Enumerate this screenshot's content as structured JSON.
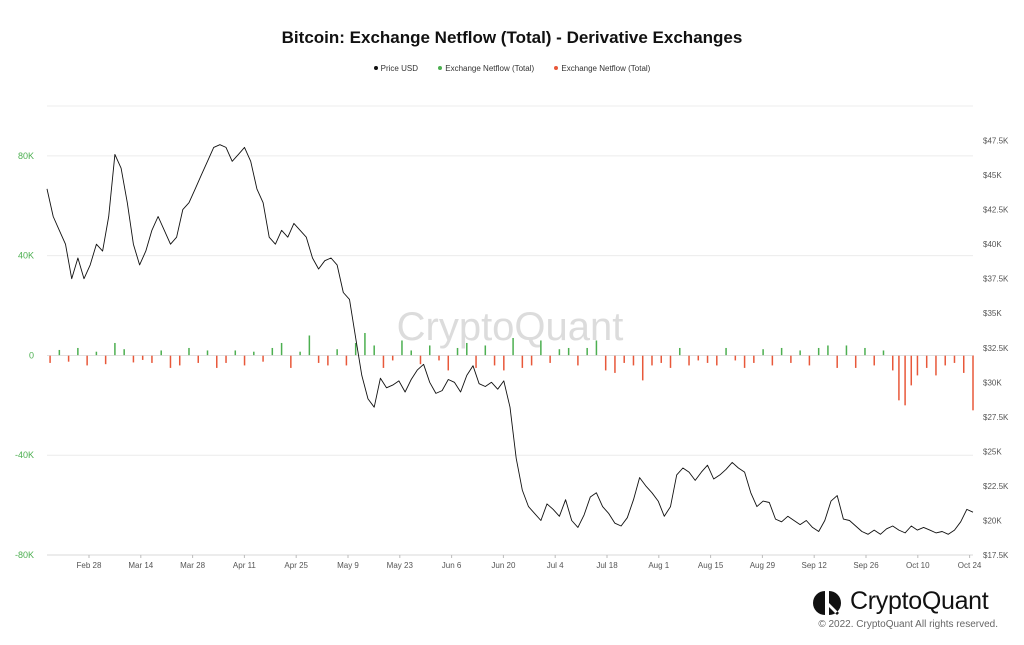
{
  "title": "Bitcoin: Exchange Netflow (Total) - Derivative Exchanges",
  "legend": [
    {
      "label": "Price USD",
      "color": "#111111"
    },
    {
      "label": "Exchange Netflow (Total)",
      "color": "#4caf50"
    },
    {
      "label": "Exchange Netflow (Total)",
      "color": "#e8583a"
    }
  ],
  "watermark": "CryptoQuant",
  "brand": {
    "name": "CryptoQuant",
    "copyright": "© 2022. CryptoQuant All rights reserved."
  },
  "colors": {
    "price": "#111111",
    "inflow": "#4caf50",
    "outflow": "#e8583a",
    "left_axis": "#4caf50",
    "grid": "#ececec"
  },
  "chart_data": {
    "type": "bar+line",
    "x_ticks": [
      "Feb 28",
      "Mar 14",
      "Mar 28",
      "Apr 11",
      "Apr 25",
      "May 9",
      "May 23",
      "Jun 6",
      "Jun 20",
      "Jul 4",
      "Jul 18",
      "Aug 1",
      "Aug 15",
      "Aug 29",
      "Sep 12",
      "Sep 26",
      "Oct 10",
      "Oct 24"
    ],
    "left_axis": {
      "ticks": [
        "80K",
        "40K",
        "0",
        "-40K",
        "-80K"
      ],
      "ylim": [
        -80000,
        100000
      ]
    },
    "right_axis": {
      "ticks": [
        "$47.5K",
        "$45K",
        "$42.5K",
        "$40K",
        "$37.5K",
        "$35K",
        "$32.5K",
        "$30K",
        "$27.5K",
        "$25K",
        "$22.5K",
        "$20K",
        "$17.5K"
      ],
      "ylim": [
        17500,
        50000
      ]
    },
    "price_usd": [
      [
        0,
        44000
      ],
      [
        2,
        42000
      ],
      [
        4,
        41000
      ],
      [
        6,
        40000
      ],
      [
        8,
        37500
      ],
      [
        10,
        39000
      ],
      [
        12,
        37500
      ],
      [
        14,
        38500
      ],
      [
        16,
        40000
      ],
      [
        18,
        39500
      ],
      [
        20,
        42000
      ],
      [
        22,
        46500
      ],
      [
        24,
        45500
      ],
      [
        26,
        43000
      ],
      [
        28,
        40000
      ],
      [
        30,
        38500
      ],
      [
        32,
        39500
      ],
      [
        34,
        41000
      ],
      [
        36,
        42000
      ],
      [
        38,
        41000
      ],
      [
        40,
        40000
      ],
      [
        42,
        40500
      ],
      [
        44,
        42500
      ],
      [
        46,
        43000
      ],
      [
        48,
        44000
      ],
      [
        50,
        45000
      ],
      [
        52,
        46000
      ],
      [
        54,
        47000
      ],
      [
        56,
        47200
      ],
      [
        58,
        47000
      ],
      [
        60,
        46000
      ],
      [
        62,
        46500
      ],
      [
        64,
        47000
      ],
      [
        66,
        46000
      ],
      [
        68,
        44000
      ],
      [
        70,
        43000
      ],
      [
        72,
        40500
      ],
      [
        74,
        40000
      ],
      [
        76,
        41000
      ],
      [
        78,
        40500
      ],
      [
        80,
        41500
      ],
      [
        82,
        41000
      ],
      [
        84,
        40500
      ],
      [
        86,
        39000
      ],
      [
        88,
        38200
      ],
      [
        90,
        38800
      ],
      [
        92,
        39000
      ],
      [
        94,
        38500
      ],
      [
        96,
        36500
      ],
      [
        98,
        36000
      ],
      [
        100,
        33200
      ],
      [
        102,
        30500
      ],
      [
        104,
        28800
      ],
      [
        106,
        28200
      ],
      [
        108,
        30300
      ],
      [
        110,
        29600
      ],
      [
        112,
        29800
      ],
      [
        114,
        30100
      ],
      [
        116,
        29300
      ],
      [
        118,
        30200
      ],
      [
        120,
        30900
      ],
      [
        122,
        31300
      ],
      [
        124,
        30000
      ],
      [
        126,
        29200
      ],
      [
        128,
        29400
      ],
      [
        130,
        30200
      ],
      [
        132,
        30000
      ],
      [
        134,
        29300
      ],
      [
        136,
        30500
      ],
      [
        138,
        31200
      ],
      [
        140,
        29900
      ],
      [
        142,
        29700
      ],
      [
        144,
        30000
      ],
      [
        146,
        29500
      ],
      [
        148,
        30100
      ],
      [
        150,
        28200
      ],
      [
        152,
        24500
      ],
      [
        154,
        22200
      ],
      [
        156,
        21000
      ],
      [
        158,
        20500
      ],
      [
        160,
        20000
      ],
      [
        162,
        21200
      ],
      [
        164,
        20800
      ],
      [
        166,
        20300
      ],
      [
        168,
        21500
      ],
      [
        170,
        20000
      ],
      [
        172,
        19500
      ],
      [
        174,
        20400
      ],
      [
        176,
        21700
      ],
      [
        178,
        22000
      ],
      [
        180,
        21000
      ],
      [
        182,
        20500
      ],
      [
        184,
        19800
      ],
      [
        186,
        19600
      ],
      [
        188,
        20200
      ],
      [
        190,
        21500
      ],
      [
        192,
        23100
      ],
      [
        194,
        22500
      ],
      [
        196,
        22000
      ],
      [
        198,
        21400
      ],
      [
        200,
        20300
      ],
      [
        202,
        21000
      ],
      [
        204,
        23300
      ],
      [
        206,
        23800
      ],
      [
        208,
        23500
      ],
      [
        210,
        22900
      ],
      [
        212,
        23500
      ],
      [
        214,
        24000
      ],
      [
        216,
        23000
      ],
      [
        218,
        23300
      ],
      [
        220,
        23700
      ],
      [
        222,
        24200
      ],
      [
        224,
        23800
      ],
      [
        226,
        23500
      ],
      [
        228,
        22000
      ],
      [
        230,
        21000
      ],
      [
        232,
        21400
      ],
      [
        234,
        21300
      ],
      [
        236,
        20100
      ],
      [
        238,
        19900
      ],
      [
        240,
        20300
      ],
      [
        242,
        20000
      ],
      [
        244,
        19700
      ],
      [
        246,
        20000
      ],
      [
        248,
        19500
      ],
      [
        250,
        19200
      ],
      [
        252,
        20000
      ],
      [
        254,
        21400
      ],
      [
        256,
        21800
      ],
      [
        258,
        20100
      ],
      [
        260,
        20000
      ],
      [
        262,
        19600
      ],
      [
        264,
        19200
      ],
      [
        266,
        19000
      ],
      [
        268,
        19300
      ],
      [
        270,
        19000
      ],
      [
        272,
        19400
      ],
      [
        274,
        19600
      ],
      [
        276,
        19300
      ],
      [
        278,
        19100
      ],
      [
        280,
        19600
      ],
      [
        282,
        19300
      ],
      [
        284,
        19500
      ],
      [
        286,
        19300
      ],
      [
        288,
        19100
      ],
      [
        290,
        19200
      ],
      [
        292,
        19000
      ],
      [
        294,
        19300
      ],
      [
        296,
        19900
      ],
      [
        298,
        20800
      ],
      [
        300,
        20600
      ]
    ],
    "netflow": [
      [
        1,
        -3000
      ],
      [
        4,
        2200
      ],
      [
        7,
        -2500
      ],
      [
        10,
        3000
      ],
      [
        13,
        -4000
      ],
      [
        16,
        1500
      ],
      [
        19,
        -3500
      ],
      [
        22,
        5000
      ],
      [
        25,
        2500
      ],
      [
        28,
        -2800
      ],
      [
        31,
        -1800
      ],
      [
        34,
        -3000
      ],
      [
        37,
        2000
      ],
      [
        40,
        -5000
      ],
      [
        43,
        -4000
      ],
      [
        46,
        3000
      ],
      [
        49,
        -3000
      ],
      [
        52,
        2000
      ],
      [
        55,
        -5000
      ],
      [
        58,
        -3000
      ],
      [
        61,
        2000
      ],
      [
        64,
        -4000
      ],
      [
        67,
        1500
      ],
      [
        70,
        -2500
      ],
      [
        73,
        3000
      ],
      [
        76,
        5000
      ],
      [
        79,
        -5000
      ],
      [
        82,
        1500
      ],
      [
        85,
        8000
      ],
      [
        88,
        -3000
      ],
      [
        91,
        -4000
      ],
      [
        94,
        2500
      ],
      [
        97,
        -4000
      ],
      [
        100,
        5000
      ],
      [
        103,
        9000
      ],
      [
        106,
        4000
      ],
      [
        109,
        -5000
      ],
      [
        112,
        -2000
      ],
      [
        115,
        6000
      ],
      [
        118,
        2000
      ],
      [
        121,
        -3500
      ],
      [
        124,
        4000
      ],
      [
        127,
        -2000
      ],
      [
        130,
        -6000
      ],
      [
        133,
        3000
      ],
      [
        136,
        5000
      ],
      [
        139,
        -5000
      ],
      [
        142,
        4000
      ],
      [
        145,
        -4000
      ],
      [
        148,
        -6000
      ],
      [
        151,
        7000
      ],
      [
        154,
        -5000
      ],
      [
        157,
        -4000
      ],
      [
        160,
        6000
      ],
      [
        163,
        -3000
      ],
      [
        166,
        2500
      ],
      [
        169,
        3000
      ],
      [
        172,
        -4000
      ],
      [
        175,
        3000
      ],
      [
        178,
        6000
      ],
      [
        181,
        -6000
      ],
      [
        184,
        -7000
      ],
      [
        187,
        -3000
      ],
      [
        190,
        -4000
      ],
      [
        193,
        -10000
      ],
      [
        196,
        -4000
      ],
      [
        199,
        -3000
      ],
      [
        202,
        -5000
      ],
      [
        205,
        3000
      ],
      [
        208,
        -4000
      ],
      [
        211,
        -2000
      ],
      [
        214,
        -3000
      ],
      [
        217,
        -4000
      ],
      [
        220,
        3000
      ],
      [
        223,
        -2000
      ],
      [
        226,
        -5000
      ],
      [
        229,
        -3000
      ],
      [
        232,
        2500
      ],
      [
        235,
        -4000
      ],
      [
        238,
        3000
      ],
      [
        241,
        -3000
      ],
      [
        244,
        2000
      ],
      [
        247,
        -4000
      ],
      [
        250,
        3000
      ],
      [
        253,
        4000
      ],
      [
        256,
        -5000
      ],
      [
        259,
        4000
      ],
      [
        262,
        -5000
      ],
      [
        265,
        3000
      ],
      [
        268,
        -4000
      ],
      [
        271,
        2000
      ],
      [
        274,
        -6000
      ],
      [
        276,
        -18000
      ],
      [
        278,
        -20000
      ],
      [
        280,
        -12000
      ],
      [
        282,
        -8000
      ],
      [
        285,
        -5000
      ],
      [
        288,
        -8000
      ],
      [
        291,
        -4000
      ],
      [
        294,
        -3000
      ],
      [
        297,
        -7000
      ],
      [
        300,
        -22000
      ]
    ]
  }
}
